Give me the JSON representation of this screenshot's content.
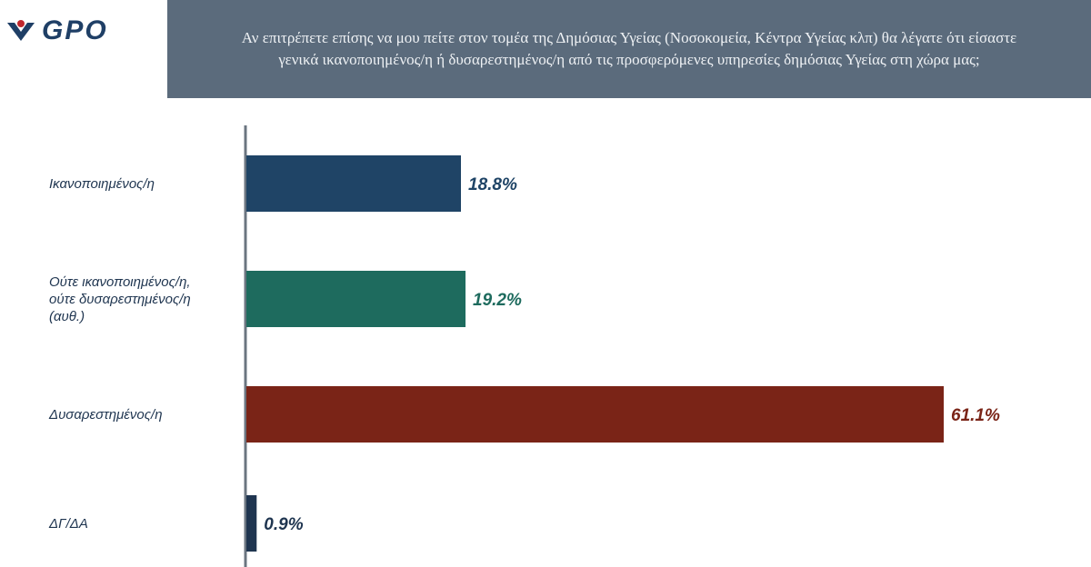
{
  "logo": {
    "text": "GPO"
  },
  "header": {
    "title": "Αν επιτρέπετε επίσης να μου πείτε στον τομέα της Δημόσιας Υγείας (Νοσοκομεία, Κέντρα Υγείας κλπ) θα λέγατε ότι είσαστε γενικά ικανοποιημένος/η ή δυσαρεστημένος/η από τις προσφερόμενες υπηρεσίες δημόσιας Υγείας στη χώρα μας;"
  },
  "chart_data": {
    "type": "bar",
    "orientation": "horizontal",
    "categories": [
      "Ικανοποιημένος/η",
      "Ούτε ικανοποιημένος/η ούτε δυσαρεστημένος/η (αυθ.)",
      "Δυσαρεστημένος/η",
      "ΔΓ/ΔΑ"
    ],
    "category_lines": [
      [
        "Ικανοποιημένος/η"
      ],
      [
        "Ούτε ικανοποιημένος/η,",
        "ούτε δυσαρεστημένος/η",
        "(αυθ.)"
      ],
      [
        "Δυσαρεστημένος/η"
      ],
      [
        "ΔΓ/ΔΑ"
      ]
    ],
    "values": [
      18.8,
      19.2,
      61.1,
      0.9
    ],
    "value_labels": [
      "18.8%",
      "19.2%",
      "61.1%",
      "0.9%"
    ],
    "colors": [
      "#1f4466",
      "#1e6b5e",
      "#7a2417",
      "#1f3550"
    ],
    "value_label_colors": [
      "#1f4466",
      "#1e6b5e",
      "#7a2417",
      "#1f3550"
    ],
    "xlim": [
      0,
      61.1
    ],
    "grid": false,
    "legend": "none"
  }
}
